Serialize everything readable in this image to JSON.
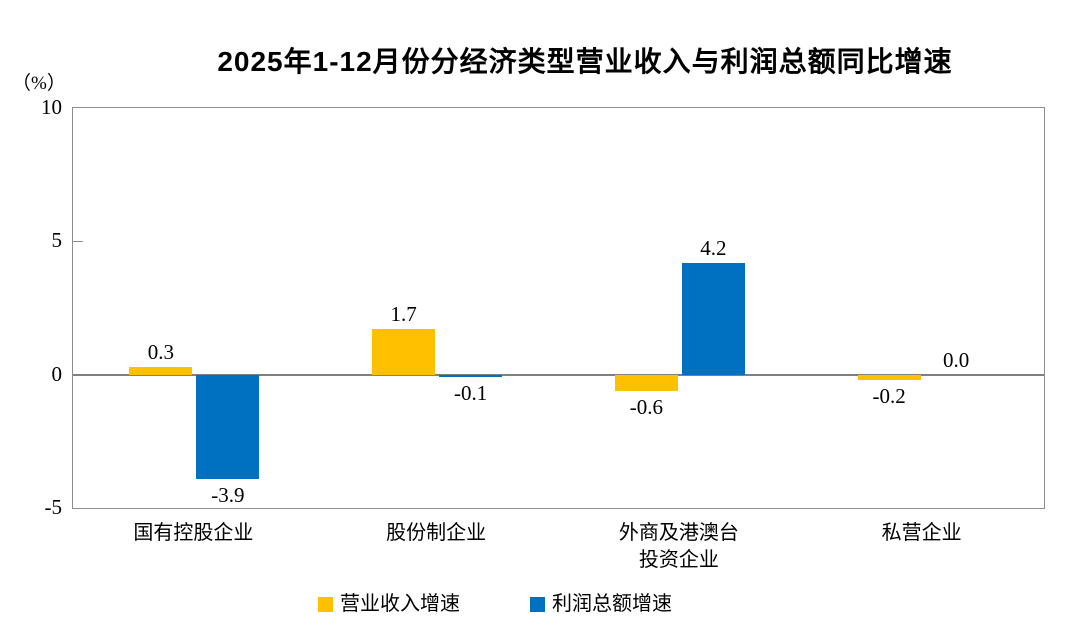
{
  "page": {
    "background": "#FFFFFF"
  },
  "chart_data": {
    "type": "bar",
    "title": "2025年1-12月份分经济类型营业收入与利润总额同比增速",
    "unit_label": "（%）",
    "categories": [
      "国有控股企业",
      "股份制企业",
      "外商及港澳台投资企业",
      "私营企业"
    ],
    "category_display_lines": [
      [
        "国有控股企业"
      ],
      [
        "股份制企业"
      ],
      [
        "外商及港澳台",
        "投资企业"
      ],
      [
        "私营企业"
      ]
    ],
    "series": [
      {
        "key": "revenue-growth",
        "name": "营业收入增速",
        "color": "#FFC000",
        "values": [
          0.3,
          1.7,
          -0.6,
          -0.2
        ],
        "labels": [
          "0.3",
          "1.7",
          "-0.6",
          "-0.2"
        ]
      },
      {
        "key": "profit-growth",
        "name": "利润总额增速",
        "color": "#0070C0",
        "values": [
          -3.9,
          -0.1,
          4.2,
          0.0
        ],
        "labels": [
          "-3.9",
          "-0.1",
          "4.2",
          "0.0"
        ]
      }
    ],
    "ylim": [
      -5,
      10
    ],
    "yticks": [
      10,
      5,
      0,
      -5
    ],
    "grid": false,
    "legend_position": "bottom",
    "axis_color": "#8C8C8C",
    "zero_line_color": "#808080",
    "text_color": "#000000"
  }
}
